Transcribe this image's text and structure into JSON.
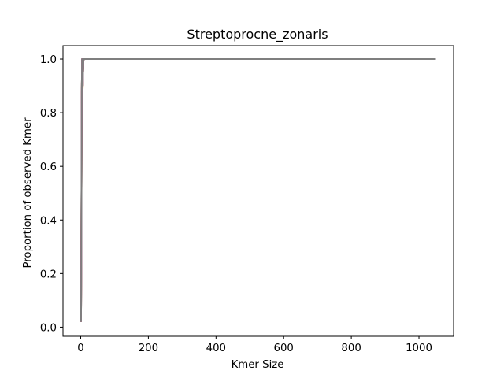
{
  "chart_data": {
    "type": "line",
    "title": "Streptoprocne_zonaris",
    "xlabel": "Kmer Size",
    "ylabel": "Proportion of observed Kmer",
    "xlim": [
      -52.4,
      1102.4
    ],
    "ylim": [
      -0.034,
      1.05
    ],
    "xticks": [
      0,
      200,
      400,
      600,
      800,
      1000
    ],
    "yticks": [
      0.0,
      0.2,
      0.4,
      0.6,
      0.8,
      1.0
    ],
    "xtick_labels": [
      "0",
      "200",
      "400",
      "600",
      "800",
      "1000"
    ],
    "ytick_labels": [
      "0.0",
      "0.2",
      "0.4",
      "0.6",
      "0.8",
      "1.0"
    ],
    "grid": false,
    "series": [
      {
        "color": "#1f77b4",
        "x": [
          1,
          2,
          3,
          4,
          5,
          6,
          7,
          8,
          9,
          10,
          12,
          15,
          20,
          50,
          100,
          200,
          400,
          600,
          800,
          1000,
          1050
        ],
        "y": [
          0.02,
          0.35,
          0.85,
          1.0,
          0.97,
          0.9,
          0.95,
          0.99,
          1.0,
          1.0,
          1.0,
          1.0,
          1.0,
          1.0,
          1.0,
          1.0,
          1.0,
          1.0,
          1.0,
          1.0,
          1.0
        ]
      },
      {
        "color": "#ff7f0e",
        "x": [
          1,
          2,
          3,
          4,
          5,
          6,
          7,
          8,
          9,
          10,
          12,
          15,
          20,
          50,
          100,
          200,
          400,
          600,
          800,
          1000,
          1050
        ],
        "y": [
          0.02,
          0.34,
          0.84,
          1.0,
          0.96,
          0.89,
          0.95,
          0.99,
          1.0,
          1.0,
          1.0,
          1.0,
          1.0,
          1.0,
          1.0,
          1.0,
          1.0,
          1.0,
          1.0,
          1.0,
          1.0
        ]
      },
      {
        "color": "#2ca02c",
        "x": [
          1,
          2,
          3,
          4,
          5,
          6,
          7,
          8,
          9,
          10,
          12,
          15,
          20,
          50,
          100,
          200,
          400,
          600,
          800,
          1000,
          1050
        ],
        "y": [
          0.02,
          0.36,
          0.86,
          1.0,
          0.97,
          0.9,
          0.96,
          0.99,
          1.0,
          1.0,
          1.0,
          1.0,
          1.0,
          1.0,
          1.0,
          1.0,
          1.0,
          1.0,
          1.0,
          1.0,
          1.0
        ]
      },
      {
        "color": "#d62728",
        "x": [
          1,
          2,
          3,
          4,
          5,
          6,
          7,
          8,
          9,
          10,
          12,
          15,
          20,
          50,
          100,
          200,
          400,
          600,
          800,
          1000,
          1050
        ],
        "y": [
          0.02,
          0.35,
          0.85,
          1.0,
          0.96,
          0.9,
          0.95,
          0.99,
          1.0,
          1.0,
          1.0,
          1.0,
          1.0,
          1.0,
          1.0,
          1.0,
          1.0,
          1.0,
          1.0,
          1.0,
          1.0
        ]
      },
      {
        "color": "#9467bd",
        "x": [
          1,
          2,
          3,
          4,
          5,
          6,
          7,
          8,
          9,
          10,
          12,
          15,
          20,
          50,
          100,
          200,
          400,
          600,
          800,
          1000,
          1050
        ],
        "y": [
          0.02,
          0.35,
          0.85,
          1.0,
          0.97,
          0.9,
          0.95,
          0.99,
          1.0,
          1.0,
          1.0,
          1.0,
          1.0,
          1.0,
          1.0,
          1.0,
          1.0,
          1.0,
          1.0,
          1.0,
          1.0
        ]
      },
      {
        "color": "#8c564b",
        "x": [
          1,
          2,
          3,
          4,
          5,
          6,
          7,
          8,
          9,
          10,
          12,
          15,
          20,
          50,
          100,
          200,
          400,
          600,
          800,
          1000,
          1050
        ],
        "y": [
          0.02,
          0.35,
          0.85,
          1.0,
          0.96,
          0.9,
          0.95,
          0.99,
          1.0,
          1.0,
          1.0,
          1.0,
          1.0,
          1.0,
          1.0,
          1.0,
          1.0,
          1.0,
          1.0,
          1.0,
          1.0
        ]
      },
      {
        "color": "#e377c2",
        "x": [
          1,
          2,
          3,
          4,
          5,
          6,
          7,
          8,
          9,
          10,
          12,
          15,
          20,
          50,
          100,
          200,
          400,
          600,
          800,
          1000,
          1050
        ],
        "y": [
          0.02,
          0.35,
          0.85,
          1.0,
          0.97,
          0.9,
          0.95,
          0.99,
          1.0,
          1.0,
          1.0,
          1.0,
          1.0,
          1.0,
          1.0,
          1.0,
          1.0,
          1.0,
          1.0,
          1.0,
          1.0
        ]
      },
      {
        "color": "#7f7f7f",
        "x": [
          1,
          2,
          3,
          4,
          5,
          6,
          7,
          8,
          9,
          10,
          12,
          15,
          20,
          50,
          100,
          200,
          400,
          600,
          800,
          1000,
          1050
        ],
        "y": [
          0.02,
          0.35,
          0.85,
          1.0,
          0.97,
          0.9,
          0.95,
          0.99,
          1.0,
          1.0,
          1.0,
          1.0,
          1.0,
          1.0,
          1.0,
          1.0,
          1.0,
          1.0,
          1.0,
          1.0,
          1.0
        ]
      }
    ]
  }
}
